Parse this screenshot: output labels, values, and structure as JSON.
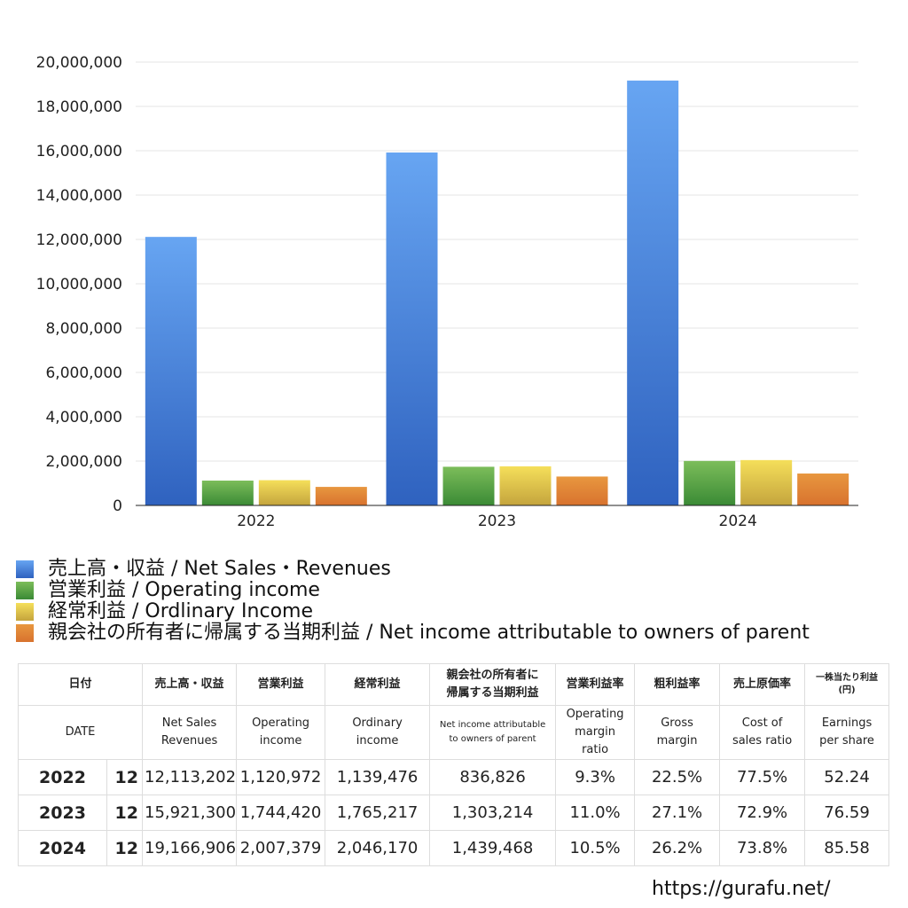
{
  "chart_data": {
    "type": "bar",
    "title": "",
    "xlabel": "",
    "ylabel": "",
    "ylim": [
      0,
      20000000
    ],
    "yticks": [
      0,
      2000000,
      4000000,
      6000000,
      8000000,
      10000000,
      12000000,
      14000000,
      16000000,
      18000000,
      20000000
    ],
    "ytick_labels": [
      "0",
      "2,000,000",
      "4,000,000",
      "6,000,000",
      "8,000,000",
      "10,000,000",
      "12,000,000",
      "14,000,000",
      "16,000,000",
      "18,000,000",
      "20,000,000"
    ],
    "categories": [
      "2022",
      "2023",
      "2024"
    ],
    "grid": true,
    "legend_position": "bottom-left",
    "series": [
      {
        "name": "売上高・収益 / Net Sales・Revenues",
        "color": "#3a78d6",
        "values": [
          12113202,
          15921300,
          19166906
        ]
      },
      {
        "name": "営業利益 / Operating income",
        "color": "#4c9a3c",
        "values": [
          1120972,
          1744420,
          2007379
        ]
      },
      {
        "name": "経常利益 / Ordlinary Income",
        "color": "#e3c845",
        "values": [
          1139476,
          1765217,
          2046170
        ]
      },
      {
        "name": "親会社の所有者に帰属する当期利益 / Net income attributable to owners of parent",
        "color": "#e07f35",
        "values": [
          836826,
          1303214,
          1439468
        ]
      }
    ]
  },
  "legend": [
    {
      "label": "売上高・収益 / Net Sales・Revenues"
    },
    {
      "label": "営業利益 / Operating income"
    },
    {
      "label": "経常利益 / Ordlinary Income"
    },
    {
      "label": "親会社の所有者に帰属する当期利益 / Net income attributable to owners of parent"
    }
  ],
  "table": {
    "header_jp": {
      "date": "日付",
      "sales": "売上高・収益",
      "operating": "営業利益",
      "ordinary": "経常利益",
      "net_income_line1": "親会社の所有者に",
      "net_income_line2": "帰属する当期利益",
      "op_margin": "営業利益率",
      "gross_margin": "粗利益率",
      "cost_ratio": "売上原価率",
      "eps_line1": "一株当たり利益",
      "eps_line2": "(円)"
    },
    "header_en": {
      "date": "DATE",
      "sales_line1": "Net Sales",
      "sales_line2": "Revenues",
      "operating_line1": "Operating",
      "operating_line2": "income",
      "ordinary_line1": "Ordinary",
      "ordinary_line2": "income",
      "net_income_line1": "Net income attributable",
      "net_income_line2": "to owners of parent",
      "op_margin_line1": "Operating",
      "op_margin_line2": "margin",
      "op_margin_line3": "ratio",
      "gross_margin_line1": "Gross",
      "gross_margin_line2": "margin",
      "cost_ratio_line1": "Cost of",
      "cost_ratio_line2": "sales ratio",
      "eps_line1": "Earnings",
      "eps_line2": "per share"
    },
    "rows": [
      {
        "year": "2022",
        "month": "12",
        "sales": "12,113,202",
        "operating": "1,120,972",
        "ordinary": "1,139,476",
        "net_income": "836,826",
        "op_margin": "9.3%",
        "gross_margin": "22.5%",
        "cost_ratio": "77.5%",
        "eps": "52.24"
      },
      {
        "year": "2023",
        "month": "12",
        "sales": "15,921,300",
        "operating": "1,744,420",
        "ordinary": "1,765,217",
        "net_income": "1,303,214",
        "op_margin": "11.0%",
        "gross_margin": "27.1%",
        "cost_ratio": "72.9%",
        "eps": "76.59"
      },
      {
        "year": "2024",
        "month": "12",
        "sales": "19,166,906",
        "operating": "2,007,379",
        "ordinary": "2,046,170",
        "net_income": "1,439,468",
        "op_margin": "10.5%",
        "gross_margin": "26.2%",
        "cost_ratio": "73.8%",
        "eps": "85.58"
      }
    ]
  },
  "footer": {
    "url": "https://gurafu.net/"
  }
}
